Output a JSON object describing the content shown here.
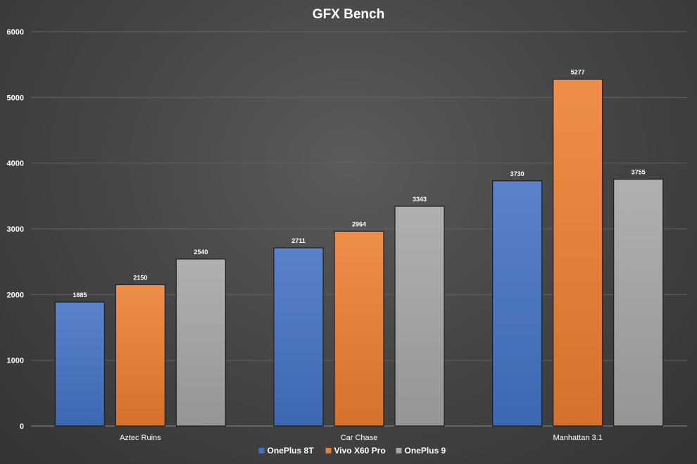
{
  "chart_data": {
    "type": "bar",
    "title": "GFX Bench",
    "categories": [
      "Aztec Ruins",
      "Car Chase",
      "Manhattan 3.1"
    ],
    "series": [
      {
        "name": "OnePlus 8T",
        "values": [
          1885,
          2711,
          3730
        ],
        "color": "#4472c4"
      },
      {
        "name": "Vivo X60 Pro",
        "values": [
          2150,
          2964,
          5277
        ],
        "color": "#ed7d31"
      },
      {
        "name": "OnePlus 9",
        "values": [
          2540,
          3343,
          3755
        ],
        "color": "#a5a5a5"
      }
    ],
    "xlabel": "",
    "ylabel": "",
    "ylim": [
      0,
      6000
    ],
    "yticks": [
      0,
      1000,
      2000,
      3000,
      4000,
      5000,
      6000
    ],
    "grid": true,
    "legend": "bottom",
    "data_labels": true
  }
}
